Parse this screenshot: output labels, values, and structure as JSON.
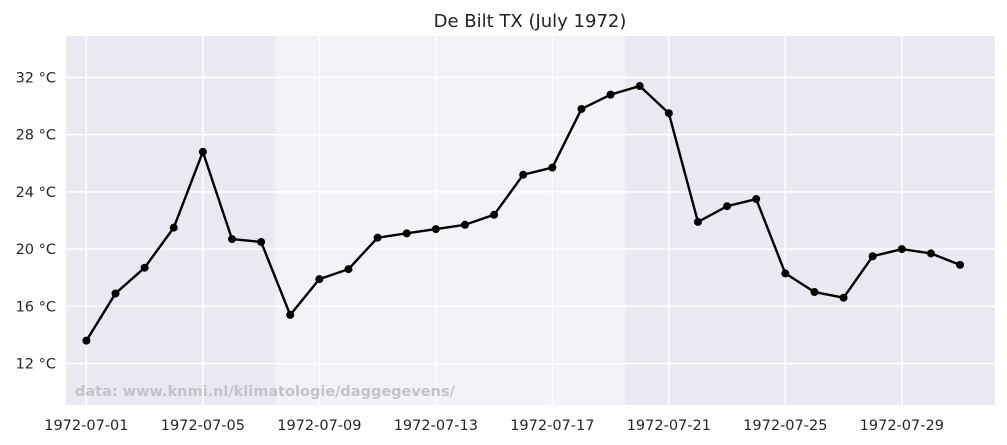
{
  "chart_data": {
    "type": "line",
    "title": "De Bilt TX (July 1972)",
    "xlabel": "",
    "ylabel": "",
    "x": [
      "1972-07-01",
      "1972-07-02",
      "1972-07-03",
      "1972-07-04",
      "1972-07-05",
      "1972-07-06",
      "1972-07-07",
      "1972-07-08",
      "1972-07-09",
      "1972-07-10",
      "1972-07-11",
      "1972-07-12",
      "1972-07-13",
      "1972-07-14",
      "1972-07-15",
      "1972-07-16",
      "1972-07-17",
      "1972-07-18",
      "1972-07-19",
      "1972-07-20",
      "1972-07-21",
      "1972-07-22",
      "1972-07-23",
      "1972-07-24",
      "1972-07-25",
      "1972-07-26",
      "1972-07-27",
      "1972-07-28",
      "1972-07-29",
      "1972-07-30",
      "1972-07-31"
    ],
    "series": [
      {
        "values": [
          13.6,
          16.9,
          18.7,
          21.5,
          26.8,
          20.7,
          20.5,
          15.4,
          17.9,
          18.6,
          20.8,
          21.1,
          21.4,
          21.7,
          22.4,
          25.2,
          25.7,
          29.8,
          30.8,
          31.4,
          29.5,
          21.9,
          23.0,
          23.5,
          18.3,
          17.0,
          16.6,
          19.5,
          20.0,
          19.7,
          18.9
        ],
        "color": "#000000"
      }
    ],
    "x_tick_labels": [
      "1972-07-01",
      "1972-07-05",
      "1972-07-09",
      "1972-07-13",
      "1972-07-17",
      "1972-07-21",
      "1972-07-25",
      "1972-07-29"
    ],
    "y_ticks": [
      12,
      16,
      20,
      24,
      28,
      32
    ],
    "y_tick_labels": [
      "12 °C",
      "16 °C",
      "20 °C",
      "24 °C",
      "28 °C",
      "32 °C"
    ],
    "ylim": [
      9.1,
      34.9
    ],
    "xlim": [
      "1972-06-30T07:12",
      "1972-08-01T04:48"
    ],
    "grid": true,
    "shaded_spans": [
      {
        "from": "1972-06-30T07:12",
        "to": "1972-07-07T12:00",
        "color": "#e9e9f1"
      },
      {
        "from": "1972-07-07T12:00",
        "to": "1972-07-19T12:00",
        "color": "#f2f2f7"
      },
      {
        "from": "1972-07-19T12:00",
        "to": "1972-08-01T04:48",
        "color": "#e9e9f1"
      }
    ],
    "annotation": "data: www.knmi.nl/klimatologie/daggegevens/"
  }
}
